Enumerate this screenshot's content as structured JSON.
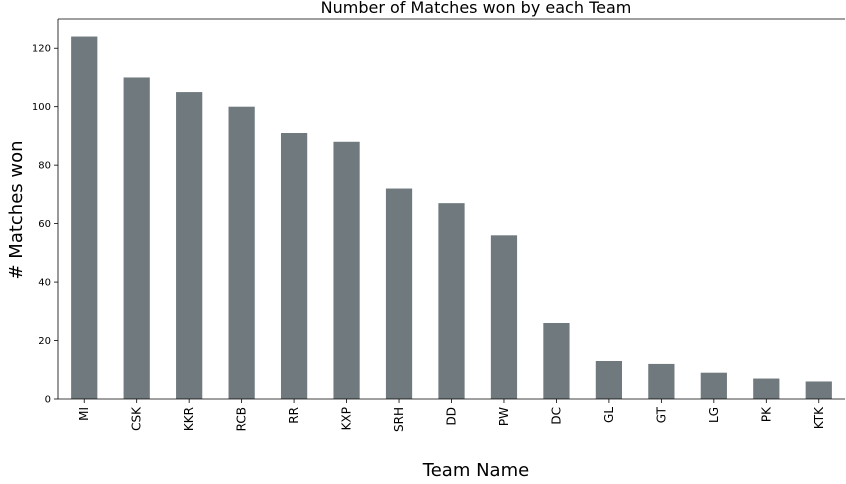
{
  "chart_data": {
    "type": "bar",
    "title": "Number of Matches won by each Team",
    "xlabel": "Team Name",
    "ylabel": "# Matches won",
    "categories": [
      "MI",
      "CSK",
      "KKR",
      "RCB",
      "RR",
      "KXP",
      "SRH",
      "DD",
      "PW",
      "DC",
      "GL",
      "GT",
      "LG",
      "PK",
      "KTK"
    ],
    "values": [
      124,
      110,
      105,
      100,
      91,
      88,
      72,
      67,
      56,
      26,
      13,
      12,
      9,
      7,
      6
    ],
    "ylim": [
      0,
      130
    ],
    "yticks": [
      0,
      20,
      40,
      60,
      80,
      100,
      120
    ],
    "grid": false,
    "legend": "none",
    "bar_color": "#707a7e"
  }
}
